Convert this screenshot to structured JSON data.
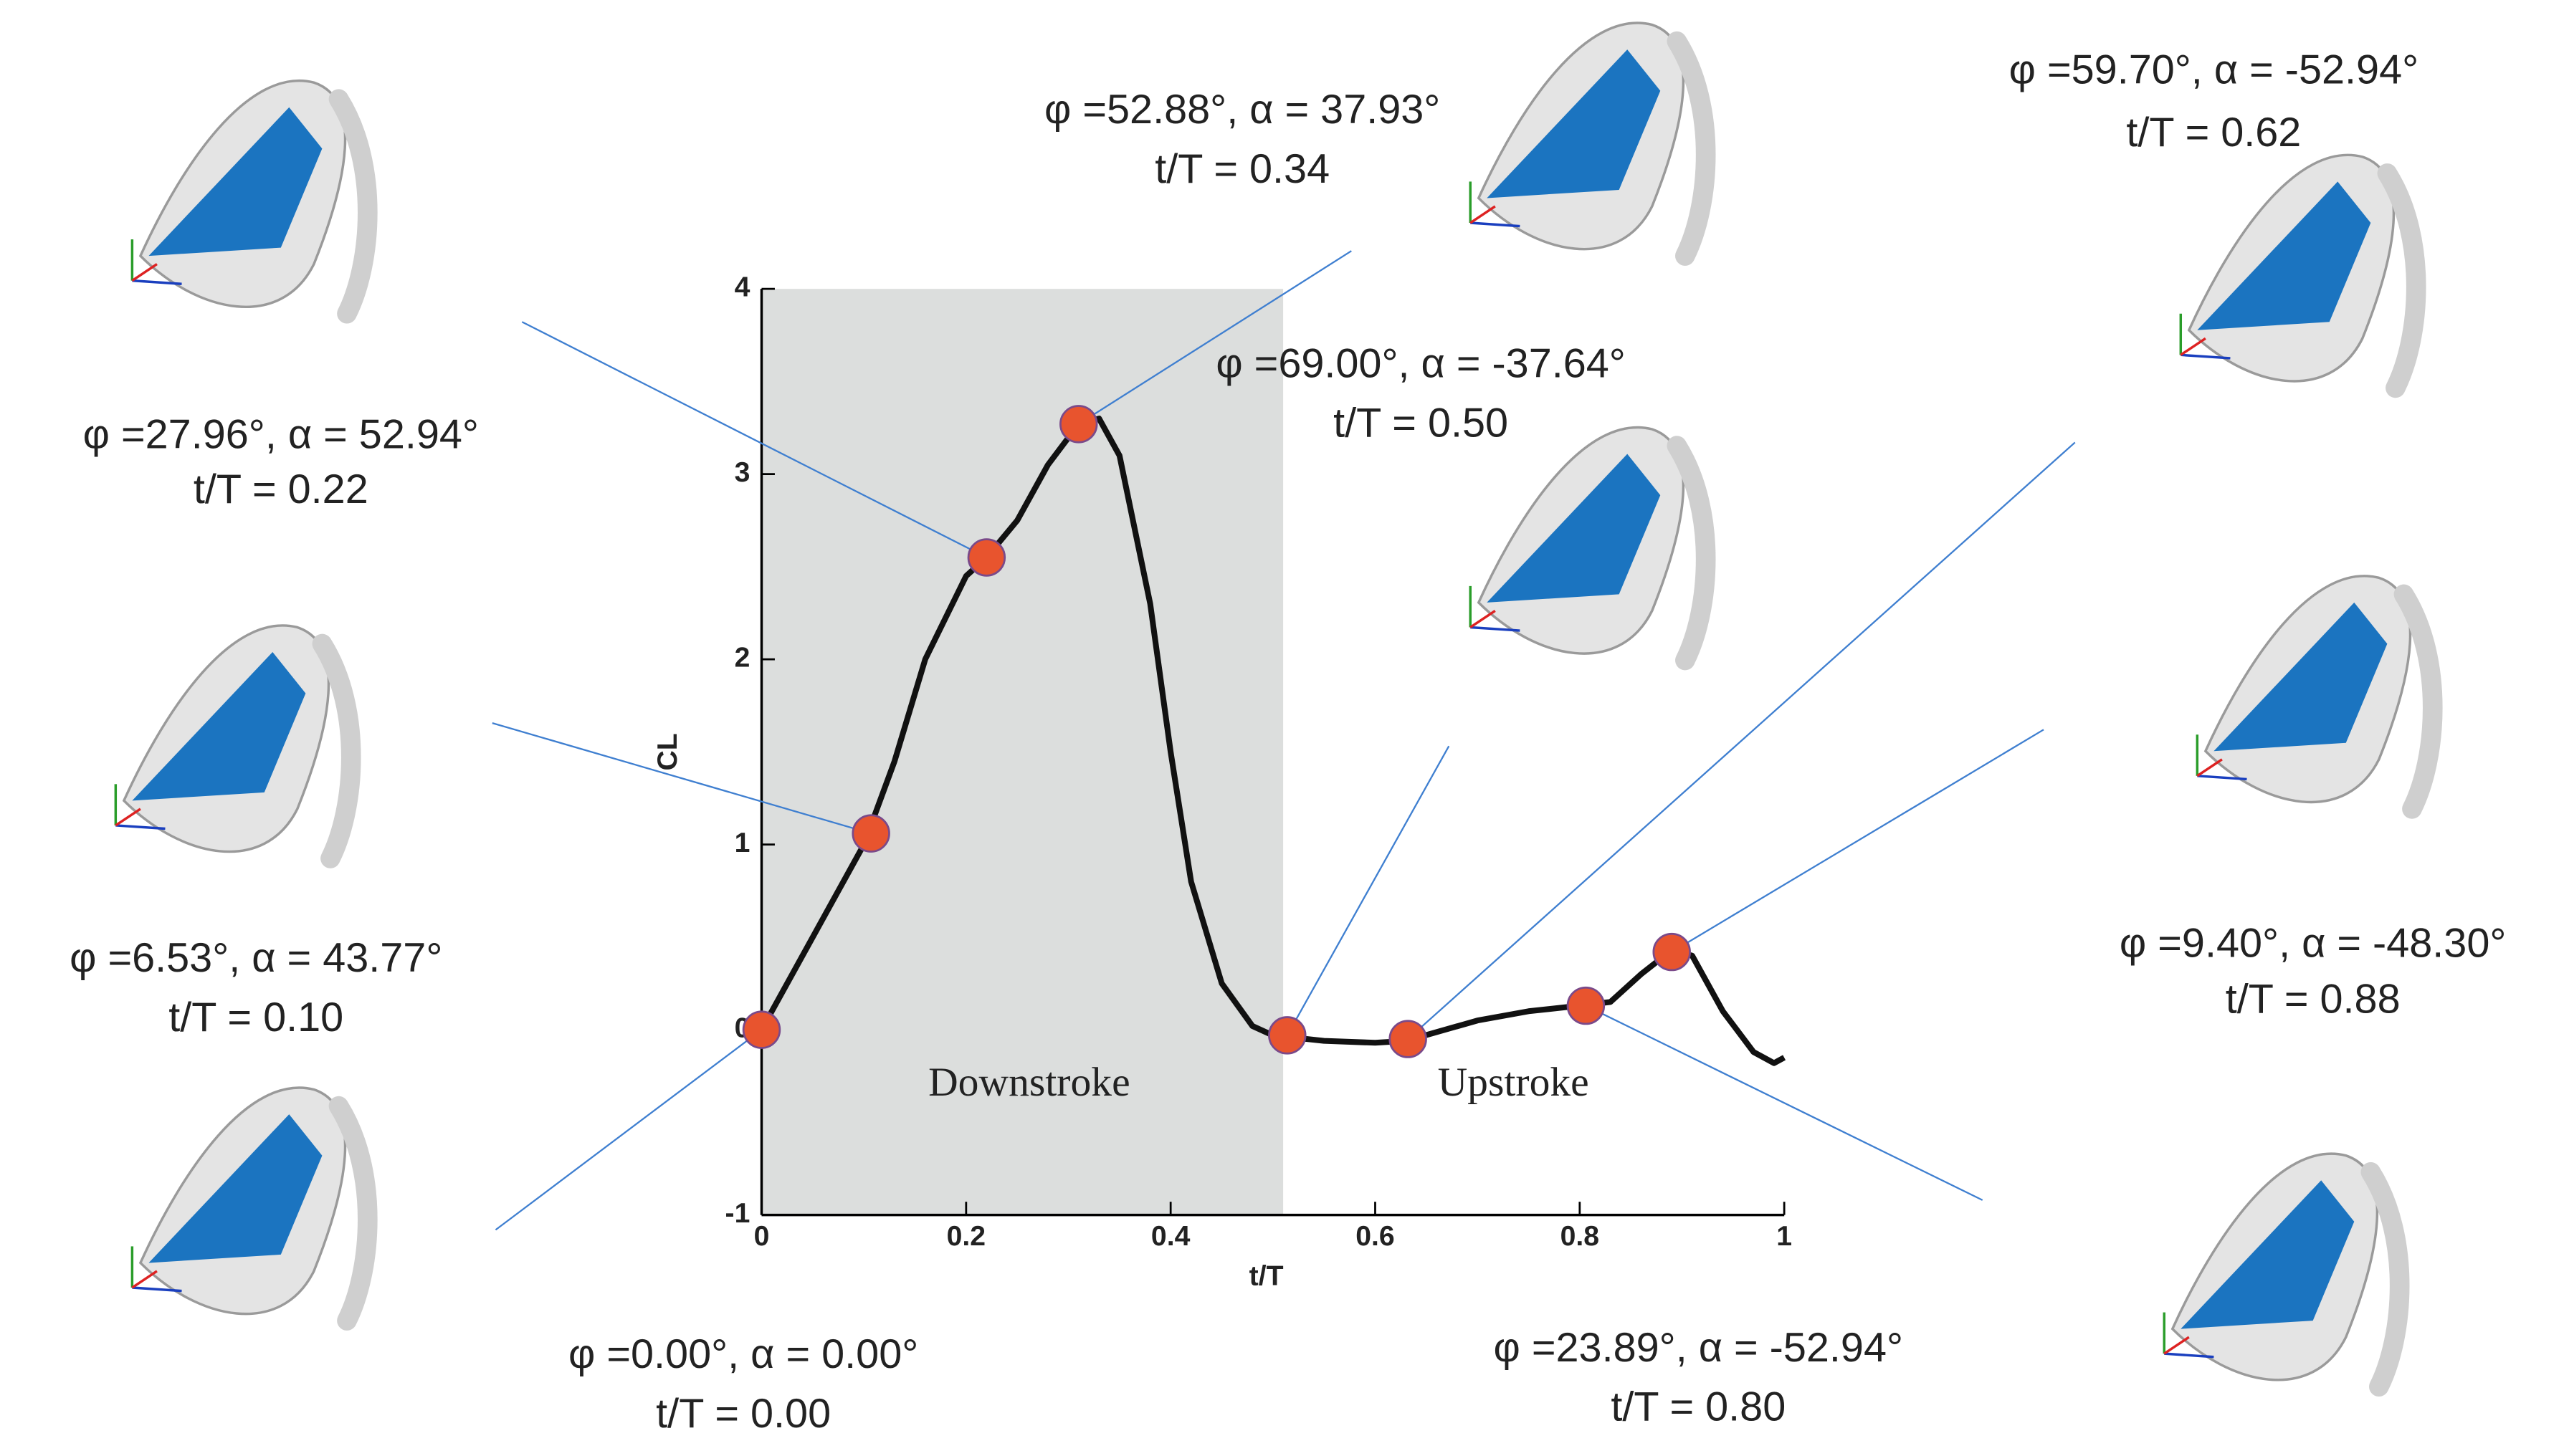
{
  "chart_data": {
    "type": "line",
    "x_label": "t/T",
    "y_label": "CL",
    "xlim": [
      0,
      1
    ],
    "ylim": [
      -1,
      4
    ],
    "xticks": [
      0,
      0.2,
      0.4,
      0.6,
      0.8,
      1
    ],
    "yticks": [
      -1,
      0,
      1,
      2,
      3,
      4
    ],
    "shaded_region": [
      0,
      0.51
    ],
    "shaded_color": "#dcdedd",
    "region_labels": [
      "Downstroke",
      "Upstroke"
    ],
    "series": [
      {
        "style": "line",
        "color": "#111111",
        "x": [
          0,
          0.05,
          0.1,
          0.13,
          0.16,
          0.2,
          0.22,
          0.25,
          0.28,
          0.31,
          0.33,
          0.35,
          0.38,
          0.4,
          0.42,
          0.45,
          0.48,
          0.5,
          0.55,
          0.6,
          0.63,
          0.7,
          0.75,
          0.8,
          0.83,
          0.86,
          0.89,
          0.91,
          0.94,
          0.97,
          0.99,
          1.0
        ],
        "values": [
          0,
          0.5,
          1.0,
          1.45,
          2.0,
          2.45,
          2.55,
          2.75,
          3.05,
          3.27,
          3.3,
          3.1,
          2.3,
          1.5,
          0.8,
          0.25,
          0.02,
          -0.03,
          -0.06,
          -0.07,
          -0.06,
          0.05,
          0.1,
          0.13,
          0.15,
          0.3,
          0.43,
          0.4,
          0.1,
          -0.12,
          -0.18,
          -0.15
        ]
      },
      {
        "style": "markers",
        "color": "#e8542e",
        "x": [
          0,
          0.107,
          0.22,
          0.31,
          0.514,
          0.632,
          0.806,
          0.89
        ],
        "values": [
          0,
          1.06,
          2.55,
          3.27,
          -0.03,
          -0.05,
          0.13,
          0.42
        ]
      }
    ],
    "annotations": [
      [
        "φ =27.96°, α = 52.94°",
        "t/T = 0.22"
      ],
      [
        "φ =6.53°, α = 43.77°",
        "t/T = 0.10"
      ],
      [
        "φ =0.00°, α = 0.00°",
        "t/T = 0.00"
      ],
      [
        "φ =52.88°, α = 37.93°",
        "t/T = 0.34"
      ],
      [
        "φ =69.00°, α = -37.64°",
        "t/T = 0.50"
      ],
      [
        "φ =59.70°, α = -52.94°",
        "t/T = 0.62"
      ],
      [
        "φ =9.40°, α = -48.30°",
        "t/T = 0.88"
      ],
      [
        "φ =23.89°, α = -52.94°",
        "t/T = 0.80"
      ]
    ]
  }
}
